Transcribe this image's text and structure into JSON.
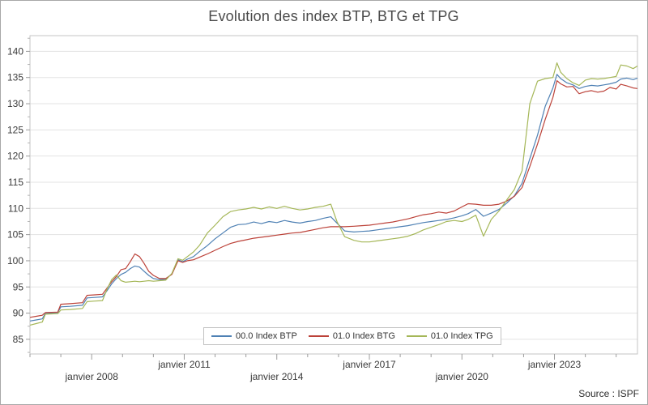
{
  "title": "Evolution des index BTP, BTG et TPG",
  "source_label": "Source : ISPF",
  "chart_data": {
    "type": "line",
    "title": "Evolution des index BTP, BTG et TPG",
    "grid": "horizontal-only",
    "legend_position": "inside-bottom-center",
    "xlim": [
      2006.0,
      2025.69
    ],
    "ylim": [
      82.2,
      143.0
    ],
    "y_ticks": [
      85,
      90,
      95,
      100,
      105,
      110,
      115,
      120,
      125,
      130,
      135,
      140
    ],
    "y_minor_step": 2.5,
    "x_tick_years": [
      2006,
      2007,
      2008,
      2009,
      2010,
      2011,
      2012,
      2013,
      2014,
      2015,
      2016,
      2017,
      2018,
      2019,
      2020,
      2021,
      2022,
      2023,
      2024,
      2025
    ],
    "x_axis_labels": [
      {
        "text": "janvier 2008",
        "year": 2008,
        "row": 2
      },
      {
        "text": "janvier 2011",
        "year": 2011,
        "row": 1
      },
      {
        "text": "janvier 2014",
        "year": 2014,
        "row": 2
      },
      {
        "text": "janvier 2017",
        "year": 2017,
        "row": 1
      },
      {
        "text": "janvier 2020",
        "year": 2020,
        "row": 2
      },
      {
        "text": "janvier 2023",
        "year": 2023,
        "row": 1
      }
    ],
    "x_years": [
      2006.0,
      2006.2,
      2006.4,
      2006.5,
      2006.9,
      2007.0,
      2007.3,
      2007.7,
      2007.85,
      2008.1,
      2008.35,
      2008.5,
      2008.65,
      2008.8,
      2008.95,
      2009.1,
      2009.25,
      2009.4,
      2009.55,
      2009.7,
      2009.85,
      2010.0,
      2010.2,
      2010.4,
      2010.6,
      2010.8,
      2010.95,
      2011.1,
      2011.3,
      2011.5,
      2011.75,
      2012.0,
      2012.25,
      2012.5,
      2012.75,
      2013.0,
      2013.25,
      2013.5,
      2013.75,
      2014.0,
      2014.25,
      2014.5,
      2014.75,
      2015.0,
      2015.25,
      2015.5,
      2015.75,
      2015.95,
      2016.2,
      2016.5,
      2016.75,
      2017.0,
      2017.25,
      2017.5,
      2017.75,
      2018.0,
      2018.25,
      2018.5,
      2018.75,
      2019.0,
      2019.25,
      2019.5,
      2019.75,
      2020.0,
      2020.2,
      2020.45,
      2020.7,
      2020.95,
      2021.2,
      2021.45,
      2021.7,
      2021.95,
      2022.2,
      2022.45,
      2022.7,
      2022.95,
      2023.08,
      2023.2,
      2023.4,
      2023.6,
      2023.8,
      2024.0,
      2024.2,
      2024.4,
      2024.6,
      2024.8,
      2025.0,
      2025.15,
      2025.35,
      2025.55,
      2025.69
    ],
    "series": [
      {
        "name": "00.0 Index BTP",
        "color": "#4f81b4",
        "values": [
          88.5,
          88.7,
          88.9,
          90.0,
          90.1,
          91.2,
          91.3,
          91.5,
          92.9,
          93.0,
          93.1,
          94.3,
          95.6,
          96.6,
          97.4,
          97.8,
          98.5,
          99.0,
          98.8,
          98.0,
          97.2,
          96.6,
          96.4,
          96.5,
          97.5,
          100.2,
          99.8,
          100.3,
          100.8,
          101.8,
          102.9,
          104.2,
          105.3,
          106.4,
          106.9,
          107.0,
          107.4,
          107.1,
          107.5,
          107.3,
          107.7,
          107.4,
          107.2,
          107.5,
          107.7,
          108.1,
          108.4,
          107.2,
          105.7,
          105.5,
          105.6,
          105.7,
          105.9,
          106.1,
          106.3,
          106.5,
          106.7,
          107.0,
          107.3,
          107.5,
          107.7,
          107.9,
          108.2,
          108.6,
          109.0,
          109.8,
          108.5,
          109.1,
          109.8,
          111.0,
          112.4,
          114.8,
          119.5,
          124.0,
          129.5,
          133.0,
          135.6,
          134.8,
          134.0,
          133.6,
          132.9,
          133.3,
          133.5,
          133.4,
          133.6,
          133.8,
          134.1,
          134.7,
          134.9,
          134.6,
          134.9
        ]
      },
      {
        "name": "01.0 Index BTG",
        "color": "#bc4239",
        "values": [
          89.2,
          89.4,
          89.6,
          90.1,
          90.2,
          91.7,
          91.8,
          92.0,
          93.4,
          93.5,
          93.6,
          94.8,
          96.0,
          97.0,
          98.3,
          98.5,
          99.8,
          101.3,
          100.8,
          99.5,
          98.0,
          97.2,
          96.6,
          96.6,
          97.4,
          100.0,
          99.7,
          100.0,
          100.2,
          100.7,
          101.3,
          102.0,
          102.7,
          103.3,
          103.7,
          104.0,
          104.3,
          104.5,
          104.7,
          104.9,
          105.1,
          105.3,
          105.4,
          105.7,
          106.0,
          106.3,
          106.5,
          106.5,
          106.5,
          106.6,
          106.7,
          106.8,
          107.0,
          107.2,
          107.4,
          107.7,
          108.0,
          108.4,
          108.8,
          109.0,
          109.3,
          109.1,
          109.5,
          110.3,
          110.9,
          110.8,
          110.6,
          110.6,
          110.8,
          111.4,
          112.3,
          114.0,
          118.0,
          122.3,
          127.0,
          131.2,
          134.4,
          133.8,
          133.2,
          133.3,
          131.9,
          132.3,
          132.5,
          132.2,
          132.4,
          133.1,
          132.8,
          133.7,
          133.4,
          133.0,
          132.9
        ]
      },
      {
        "name": "01.0 Index TPG",
        "color": "#a5b758",
        "values": [
          87.7,
          88.0,
          88.3,
          89.8,
          89.9,
          90.6,
          90.7,
          90.9,
          92.2,
          92.3,
          92.4,
          94.6,
          96.4,
          97.3,
          96.2,
          95.9,
          96.0,
          96.1,
          96.0,
          96.1,
          96.2,
          96.1,
          96.2,
          96.3,
          97.6,
          100.4,
          100.1,
          100.8,
          101.7,
          103.0,
          105.3,
          106.8,
          108.4,
          109.4,
          109.7,
          109.9,
          110.2,
          109.9,
          110.3,
          110.0,
          110.4,
          110.0,
          109.7,
          109.9,
          110.2,
          110.4,
          110.8,
          107.5,
          104.6,
          103.9,
          103.6,
          103.6,
          103.8,
          104.0,
          104.2,
          104.4,
          104.7,
          105.2,
          105.9,
          106.4,
          106.9,
          107.5,
          107.7,
          107.5,
          107.9,
          108.7,
          104.7,
          107.9,
          109.5,
          111.6,
          113.6,
          117.2,
          130.0,
          134.3,
          134.8,
          135.0,
          137.8,
          136.0,
          134.8,
          134.0,
          133.5,
          134.5,
          134.8,
          134.7,
          134.8,
          135.0,
          135.2,
          137.4,
          137.2,
          136.7,
          137.2
        ]
      }
    ]
  }
}
